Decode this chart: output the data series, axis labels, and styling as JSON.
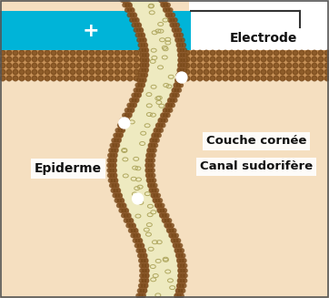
{
  "bg_color": "#f5dfc0",
  "electrode_color": "#00b4d8",
  "electrode_label": "Electrode",
  "electrode_plus": "+",
  "couche_cornee_base_color": "#c8935a",
  "couche_cornee_dot_color": "#7a4a1a",
  "canal_outer_color": "#b8835a",
  "canal_outer_dot_color": "#7a4a1a",
  "canal_inner_color": "#eeeac0",
  "canal_cell_color": "#b0a860",
  "epidermis_label": "Epiderme",
  "couche_label": "Couche cornée",
  "canal_label": "Canal sudorifère",
  "frame_color": "#333333",
  "white_dot_color": "#ffffff",
  "text_color": "#111111",
  "white_bg": "#ffffff"
}
